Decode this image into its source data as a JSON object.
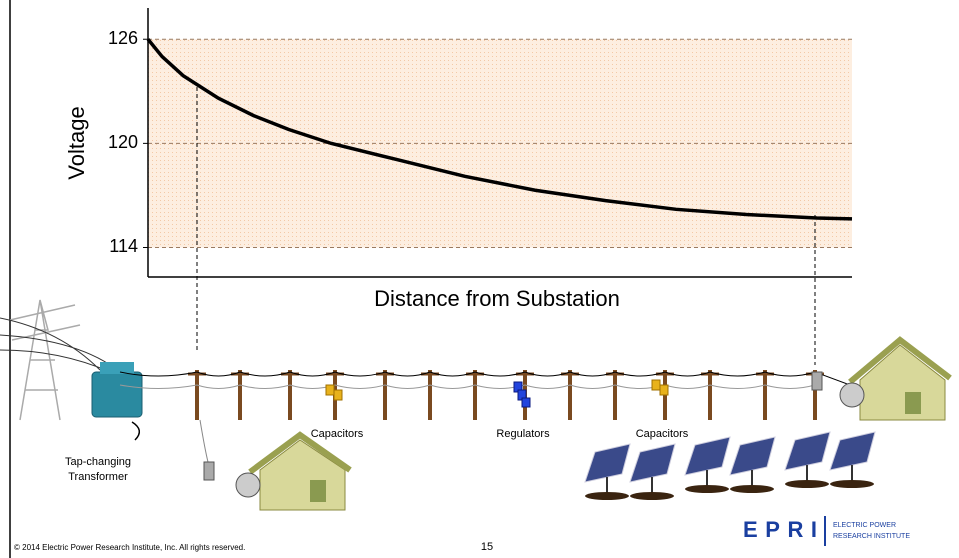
{
  "chart_data": {
    "type": "line",
    "y_label": "Voltage",
    "x_label": "Distance from Substation",
    "x": [
      0,
      2,
      5,
      10,
      15,
      20,
      26,
      35,
      45,
      55,
      65,
      75,
      85,
      95,
      100
    ],
    "series": [
      {
        "color": "#000000",
        "values": [
          126,
          125,
          123.9,
          122.6,
          121.6,
          120.8,
          120,
          119.1,
          118.1,
          117.3,
          116.7,
          116.2,
          115.9,
          115.7,
          115.65
        ]
      }
    ],
    "xlim": [
      0,
      100
    ],
    "ylim": [
      112.3,
      127.8
    ],
    "yticks": [
      114,
      120,
      126
    ],
    "grid": true
  },
  "labels": {
    "capacitors_left": "Capacitors",
    "regulators": "Regulators",
    "capacitors_right": "Capacitors",
    "transformer": [
      "Tap-changing",
      "Transformer"
    ]
  },
  "footer": {
    "copyright": "© 2014 Electric Power Research Institute, Inc. All rights reserved.",
    "page": "15",
    "logo": "EPRI",
    "institute": [
      "ELECTRIC POWER",
      "RESEARCH INSTITUTE"
    ]
  }
}
